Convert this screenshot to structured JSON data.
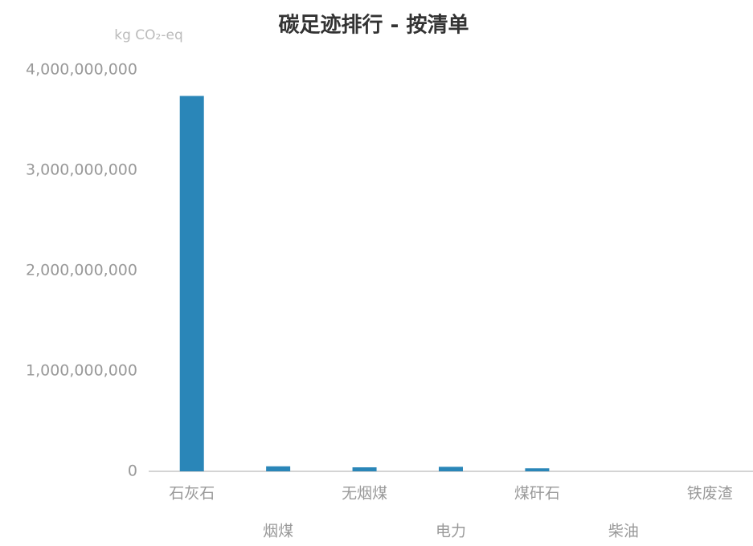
{
  "chart_data": {
    "type": "bar",
    "title": "碳足迹排行 - 按清单",
    "y_label": "kg CO₂-eq",
    "categories": [
      "石灰石",
      "烟煤",
      "无烟煤",
      "电力",
      "煤矸石",
      "柴油",
      "铁废渣"
    ],
    "values": [
      3740086000,
      50000000,
      40000000,
      45000000,
      30000000,
      124.47,
      0
    ],
    "color": "#2a86b8",
    "ylim": [
      0,
      4000000000
    ],
    "yticks": [
      0,
      {
        "value": 1000000000,
        "label": "1,000,000,000"
      },
      {
        "value": 2000000000,
        "label": "2,000,000,000"
      },
      {
        "value": 3000000000,
        "label": "3,000,000,000"
      },
      {
        "value": 4000000000,
        "label": "4,000,000,000"
      }
    ],
    "grid": false
  }
}
